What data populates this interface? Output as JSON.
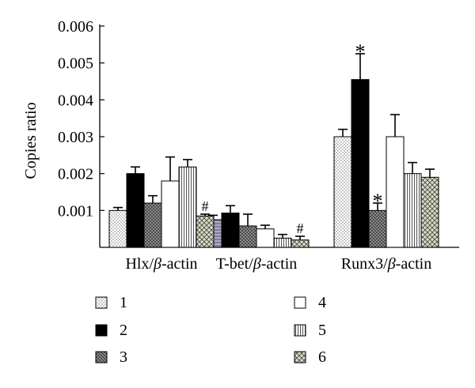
{
  "chart_data": {
    "type": "bar",
    "ylabel": "Copies ratio",
    "ylim": [
      0,
      0.006
    ],
    "y_ticks": [
      "0.001",
      "0.002",
      "0.003",
      "0.004",
      "0.005",
      "0.006"
    ],
    "y_tick_values": [
      0.001,
      0.002,
      0.003,
      0.004,
      0.005,
      0.006
    ],
    "groups": [
      {
        "label_prefix": "Hlx/",
        "label_suffix": "-actin"
      },
      {
        "label_prefix": "T-bet/",
        "label_suffix": "-actin"
      },
      {
        "label_prefix": "Runx3/",
        "label_suffix": "-actin"
      }
    ],
    "beta_symbol": "β",
    "series": [
      {
        "name": "1",
        "pattern": "dots",
        "values": [
          0.001,
          0.00075,
          0.003
        ],
        "errors": [
          8e-05,
          0.00012,
          0.0002
        ]
      },
      {
        "name": "2",
        "pattern": "solid",
        "values": [
          0.002,
          0.00093,
          0.00455
        ],
        "errors": [
          0.00018,
          0.0002,
          0.0007
        ]
      },
      {
        "name": "3",
        "pattern": "crosshatch",
        "values": [
          0.0012,
          0.00058,
          0.001
        ],
        "errors": [
          0.0002,
          0.00032,
          0.0002
        ]
      },
      {
        "name": "4",
        "pattern": "hollow",
        "values": [
          0.0018,
          0.0005,
          0.003
        ],
        "errors": [
          0.00065,
          0.0001,
          0.0006
        ]
      },
      {
        "name": "5",
        "pattern": "vlines",
        "values": [
          0.00218,
          0.00025,
          0.002
        ],
        "errors": [
          0.0002,
          0.0001,
          0.0003
        ]
      },
      {
        "name": "6",
        "pattern": "diamond",
        "values": [
          0.00085,
          0.0002,
          0.0019
        ],
        "errors": [
          5e-05,
          0.0001,
          0.00022
        ]
      }
    ],
    "annotations": [
      {
        "text": "#",
        "group": 0,
        "series": 5
      },
      {
        "text": "#",
        "group": 1,
        "series": 5
      },
      {
        "text": "*",
        "group": 2,
        "series": 1
      },
      {
        "text": "*",
        "group": 2,
        "series": 2
      }
    ],
    "legend_position": "bottom",
    "grid": false
  }
}
